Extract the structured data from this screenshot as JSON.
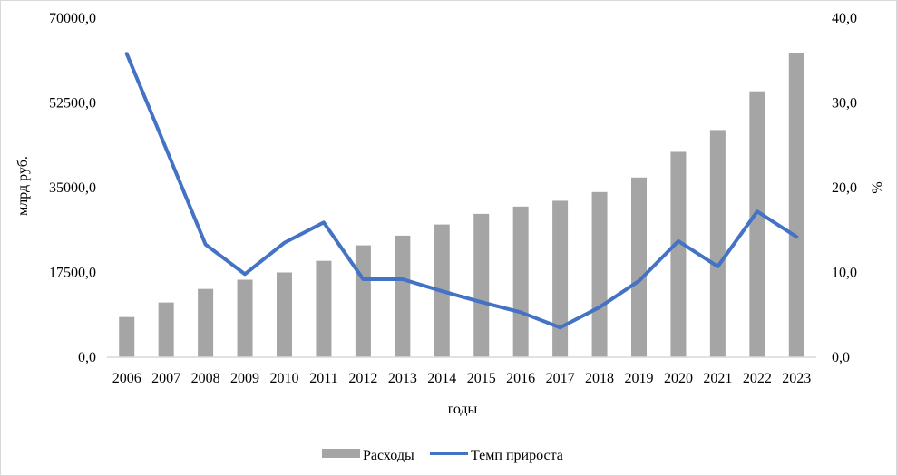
{
  "chart_data": {
    "type": "bar+line",
    "xlabel": "годы",
    "ylabel_left": "млрд руб.",
    "ylabel_right": "%",
    "categories": [
      "2006",
      "2007",
      "2008",
      "2009",
      "2010",
      "2011",
      "2012",
      "2013",
      "2014",
      "2015",
      "2016",
      "2017",
      "2018",
      "2019",
      "2020",
      "2021",
      "2022",
      "2023"
    ],
    "y_left": {
      "min": 0,
      "max": 70000,
      "ticks": [
        "0,0",
        "17500,0",
        "35000,0",
        "52500,0",
        "70000,0"
      ],
      "tick_values": [
        0,
        17500,
        35000,
        52500,
        70000
      ]
    },
    "y_right": {
      "min": 0,
      "max": 40,
      "ticks": [
        "0,0",
        "10,0",
        "20,0",
        "30,0",
        "40,0"
      ],
      "tick_values": [
        0,
        10,
        20,
        30,
        40
      ]
    },
    "grid": false,
    "legend_position": "bottom",
    "series": [
      {
        "name": "Расходы",
        "type": "bar",
        "axis": "left",
        "color": "#a5a5a5",
        "values": [
          8300,
          11300,
          14100,
          16000,
          17500,
          19900,
          23100,
          25100,
          27400,
          29600,
          31100,
          32300,
          34100,
          37100,
          42400,
          46900,
          54900,
          62800
        ]
      },
      {
        "name": "Темп прироста",
        "type": "line",
        "axis": "right",
        "color": "#4472c4",
        "values": [
          35.8,
          24.6,
          13.3,
          9.8,
          13.5,
          15.9,
          9.2,
          9.2,
          7.8,
          6.5,
          5.3,
          3.5,
          5.9,
          9.0,
          13.7,
          10.7,
          17.2,
          14.2
        ]
      }
    ]
  }
}
